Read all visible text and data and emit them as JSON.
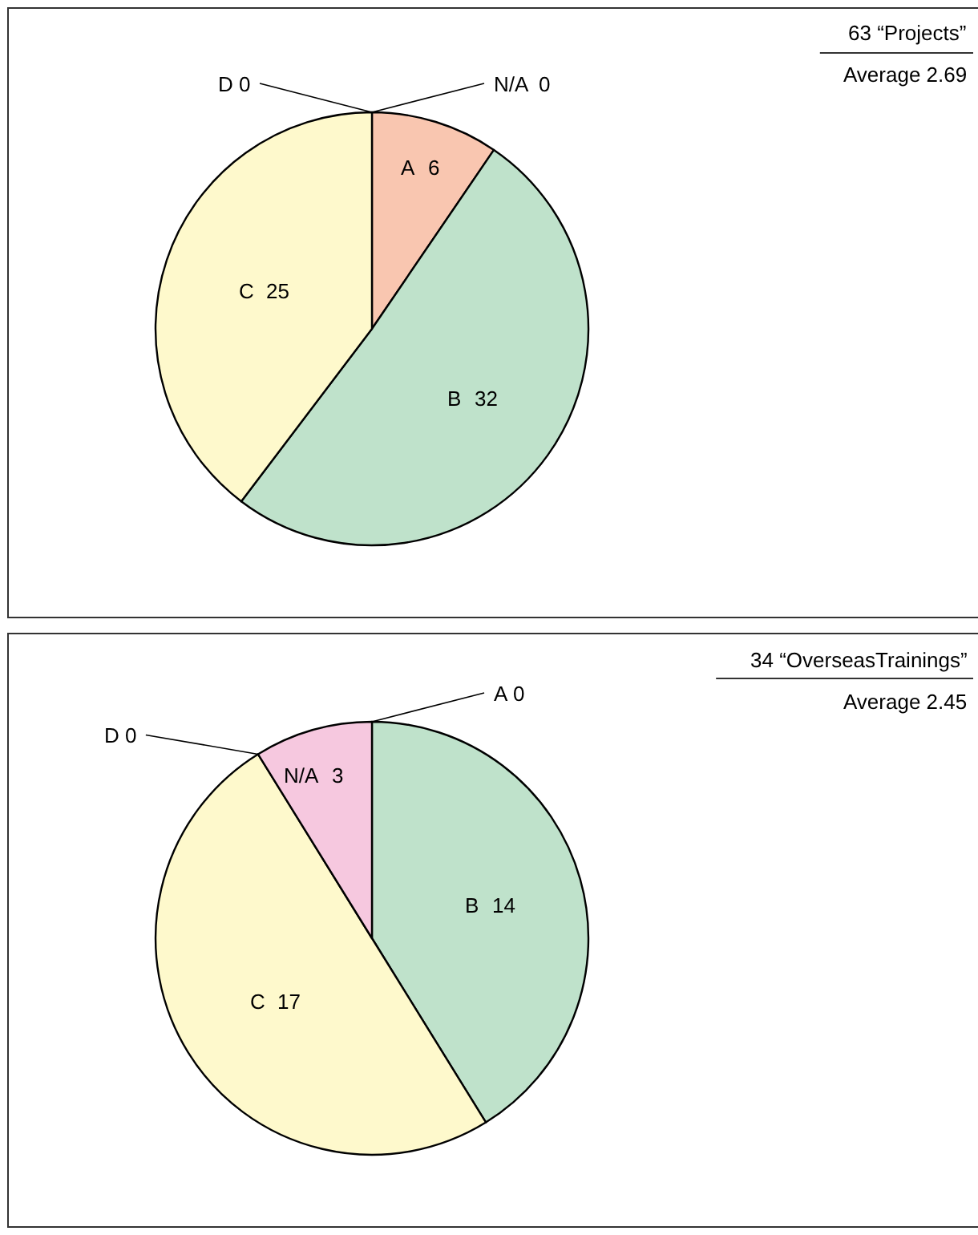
{
  "chart_data": [
    {
      "type": "pie",
      "title": "63 “Projects”",
      "subtitle": "Average 2.69",
      "categories": [
        "A",
        "B",
        "C",
        "D",
        "N/A"
      ],
      "values": [
        6,
        32,
        25,
        0,
        0
      ],
      "colors": [
        "#f9c6b0",
        "#bfe2cb",
        "#fef9cc",
        "#cfe0f5",
        "#f6c8df"
      ],
      "value_labels": [
        "6",
        "32",
        "25",
        "0",
        "0"
      ]
    },
    {
      "type": "pie",
      "title": "34 “OverseasTrainings”",
      "subtitle": "Average 2.45",
      "categories": [
        "A",
        "B",
        "C",
        "D",
        "N/A"
      ],
      "values": [
        0,
        14,
        17,
        0,
        3
      ],
      "colors": [
        "#f9c6b0",
        "#bfe2cb",
        "#fef9cc",
        "#cfe0f5",
        "#f6c8df"
      ],
      "value_labels": [
        "0",
        "14",
        "17",
        "0",
        "3"
      ]
    }
  ]
}
